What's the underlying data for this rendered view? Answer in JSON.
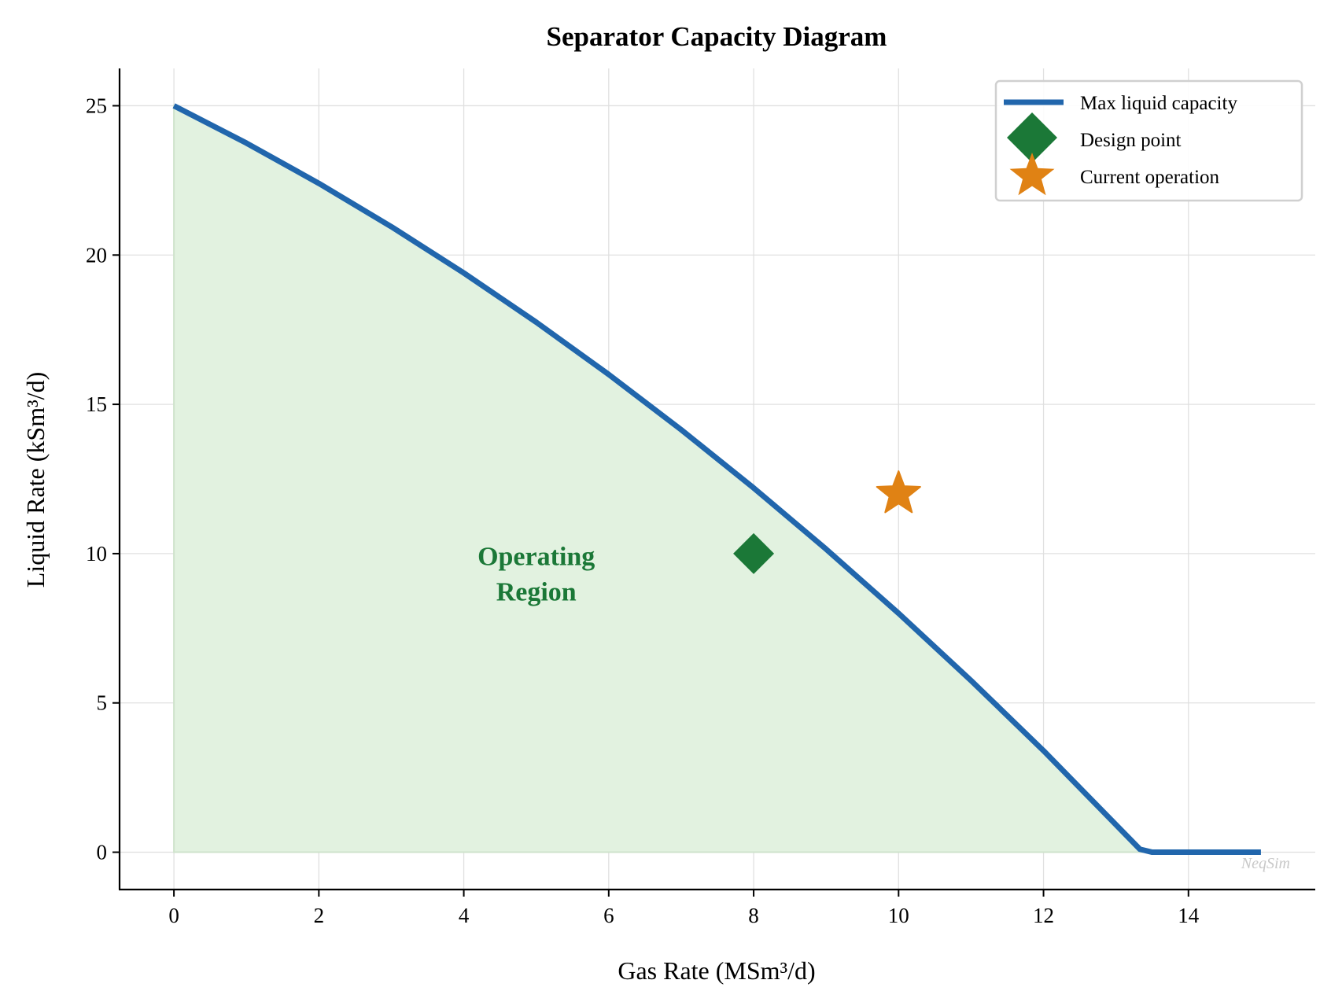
{
  "chart_data": {
    "type": "line",
    "title": "Separator Capacity Diagram",
    "xlabel": "Gas Rate (MSm³/d)",
    "ylabel": "Liquid Rate (kSm³/d)",
    "xlim": [
      -0.75,
      15.75
    ],
    "ylim": [
      -1.25,
      26.25
    ],
    "xticks": [
      0,
      2,
      4,
      6,
      8,
      10,
      12,
      14
    ],
    "yticks": [
      0,
      5,
      10,
      15,
      20,
      25
    ],
    "grid": true,
    "legend_position": "top-right",
    "series": [
      {
        "name": "Max liquid capacity",
        "type": "line",
        "color": "#2166ac",
        "x": [
          0,
          1,
          2,
          3,
          4,
          5,
          6,
          7,
          8,
          9,
          10,
          11,
          12,
          13.33,
          13.5,
          15
        ],
        "y": [
          25,
          23.75,
          22.4,
          20.95,
          19.4,
          17.75,
          16.0,
          14.15,
          12.2,
          10.15,
          8.0,
          5.75,
          3.4,
          0.1,
          0,
          0
        ]
      },
      {
        "name": "Design point",
        "type": "scatter",
        "marker": "diamond",
        "color": "#1b7837",
        "x": [
          8
        ],
        "y": [
          10
        ]
      },
      {
        "name": "Current operation",
        "type": "scatter",
        "marker": "star",
        "color": "#e08214",
        "x": [
          10
        ],
        "y": [
          12
        ]
      }
    ],
    "fill": {
      "color": "#e2f2e0",
      "under": "Max liquid capacity"
    },
    "annotations": [
      {
        "text_line1": "Operating",
        "text_line2": "Region",
        "x": 5,
        "y": 9.4,
        "color": "#1b7837"
      }
    ],
    "watermark": "NeqSim"
  }
}
